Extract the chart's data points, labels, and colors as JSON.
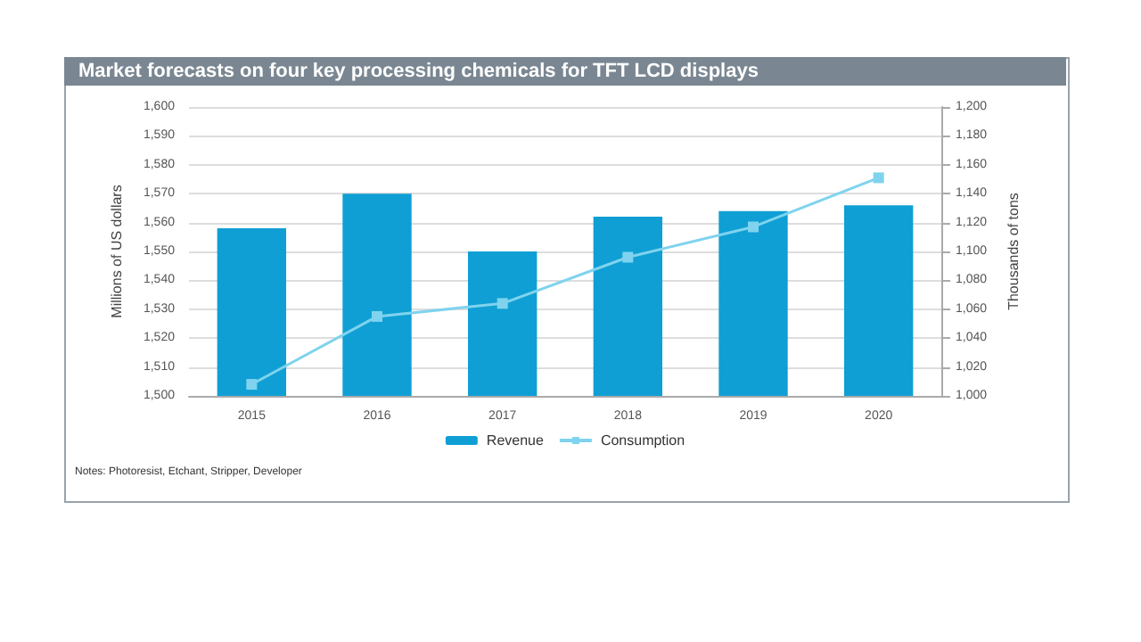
{
  "chart_data": {
    "type": "bar",
    "title": "Market forecasts on four key processing chemicals for TFT LCD displays",
    "ylabel": "Millions of US dollars",
    "y2label": "Thousands of tons",
    "categories": [
      "2015",
      "2016",
      "2017",
      "2018",
      "2019",
      "2020"
    ],
    "series": [
      {
        "name": "Revenue",
        "color": "#0f9fd4",
        "values": [
          1558,
          1570,
          1550,
          1562,
          1564,
          1566
        ]
      },
      {
        "name": "Consumption",
        "type": "line",
        "axis": "y2",
        "color": "#7fd3ee",
        "marker": "square",
        "values": [
          1008,
          1055,
          1064,
          1096,
          1117,
          1151
        ]
      }
    ],
    "ylim": [
      1500,
      1600
    ],
    "yticks": [
      {
        "value": 1500,
        "label": "1,500"
      },
      {
        "value": 1510,
        "label": "1,510"
      },
      {
        "value": 1520,
        "label": "1,520"
      },
      {
        "value": 1530,
        "label": "1,530"
      },
      {
        "value": 1540,
        "label": "1,540"
      },
      {
        "value": 1550,
        "label": "1,550"
      },
      {
        "value": 1560,
        "label": "1,560"
      },
      {
        "value": 1570,
        "label": "1,570"
      },
      {
        "value": 1580,
        "label": "1,580"
      },
      {
        "value": 1590,
        "label": "1,590"
      },
      {
        "value": 1600,
        "label": "1,600"
      }
    ],
    "y2lim": [
      1000,
      1200
    ],
    "y2ticks": [
      {
        "value": 1000,
        "label": "1,000"
      },
      {
        "value": 1020,
        "label": "1,020"
      },
      {
        "value": 1040,
        "label": "1,040"
      },
      {
        "value": 1060,
        "label": "1,060"
      },
      {
        "value": 1080,
        "label": "1,080"
      },
      {
        "value": 1100,
        "label": "1,100"
      },
      {
        "value": 1120,
        "label": "1,120"
      },
      {
        "value": 1140,
        "label": "1,140"
      },
      {
        "value": 1160,
        "label": "1,160"
      },
      {
        "value": 1180,
        "label": "1,180"
      },
      {
        "value": 1200,
        "label": "1,200"
      }
    ],
    "grid": "y",
    "legend": "bottom",
    "annotations": [
      "Notes: Photoresist, Etchant, Stripper, Developer"
    ]
  }
}
